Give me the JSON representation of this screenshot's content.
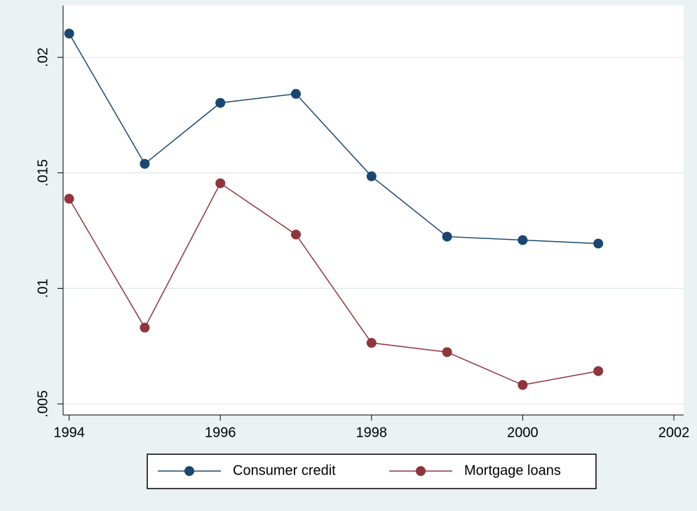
{
  "chart_data": {
    "type": "line",
    "x": [
      1994,
      1995,
      1996,
      1997,
      1998,
      1999,
      2000,
      2001
    ],
    "series": [
      {
        "name": "Consumer credit",
        "color": "#1a476f",
        "values": [
          0.02103,
          0.01539,
          0.01803,
          0.01842,
          0.01485,
          0.01224,
          0.01209,
          0.01194
        ]
      },
      {
        "name": "Mortgage loans",
        "color": "#90353b",
        "values": [
          0.01388,
          0.0083,
          0.01455,
          0.01233,
          0.00764,
          0.00724,
          0.00582,
          0.00642
        ]
      }
    ],
    "xlim": [
      1993.92,
      2002.13
    ],
    "xticks": [
      1994,
      1996,
      1998,
      2000,
      2002
    ],
    "ylim": [
      0.00452,
      0.02224
    ],
    "yticks": [
      {
        "value": 0.005,
        "label": ".005"
      },
      {
        "value": 0.01,
        "label": ".01"
      },
      {
        "value": 0.015,
        "label": ".015"
      },
      {
        "value": 0.02,
        "label": ".02"
      }
    ],
    "grid": true,
    "legend": "bottom"
  }
}
